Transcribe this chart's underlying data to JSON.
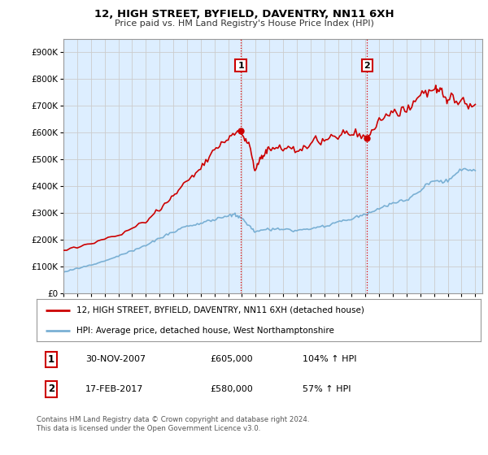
{
  "title1": "12, HIGH STREET, BYFIELD, DAVENTRY, NN11 6XH",
  "title2": "Price paid vs. HM Land Registry's House Price Index (HPI)",
  "ytick_values": [
    0,
    100000,
    200000,
    300000,
    400000,
    500000,
    600000,
    700000,
    800000,
    900000
  ],
  "ylim": [
    0,
    950000
  ],
  "xlim_start": 1995.0,
  "xlim_end": 2025.5,
  "red_line_color": "#cc0000",
  "blue_line_color": "#7ab0d4",
  "grid_color": "#cccccc",
  "bg_color": "#ddeeff",
  "vline_color": "#dd0000",
  "marker1_x": 2007.92,
  "marker1_label": "1",
  "marker1_sale_y": 605000,
  "marker2_x": 2017.12,
  "marker2_label": "2",
  "marker2_sale_y": 580000,
  "legend_line1": "12, HIGH STREET, BYFIELD, DAVENTRY, NN11 6XH (detached house)",
  "legend_line2": "HPI: Average price, detached house, West Northamptonshire",
  "table_row1_num": "1",
  "table_row1_date": "30-NOV-2007",
  "table_row1_price": "£605,000",
  "table_row1_hpi": "104% ↑ HPI",
  "table_row2_num": "2",
  "table_row2_date": "17-FEB-2017",
  "table_row2_price": "£580,000",
  "table_row2_hpi": "57% ↑ HPI",
  "footnote": "Contains HM Land Registry data © Crown copyright and database right 2024.\nThis data is licensed under the Open Government Licence v3.0.",
  "xtick_years": [
    1995,
    1996,
    1997,
    1998,
    1999,
    2000,
    2001,
    2002,
    2003,
    2004,
    2005,
    2006,
    2007,
    2008,
    2009,
    2010,
    2011,
    2012,
    2013,
    2014,
    2015,
    2016,
    2017,
    2018,
    2019,
    2020,
    2021,
    2022,
    2023,
    2024,
    2025
  ]
}
